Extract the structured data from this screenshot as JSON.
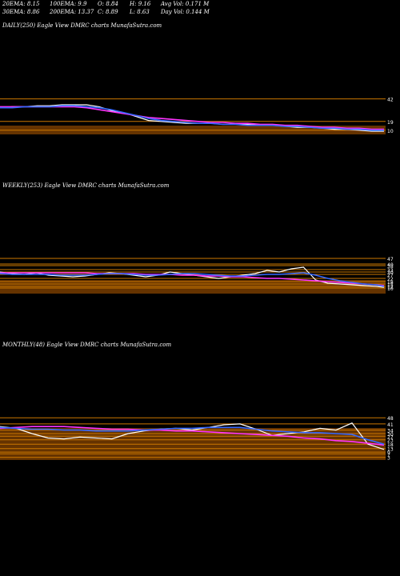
{
  "header": {
    "row1": [
      "20EMA: 8.15",
      "100EMA: 9.9",
      "O: 8.84",
      "H: 9.16",
      "Avg Vol: 0.171 M"
    ],
    "row2": [
      "30EMA: 8.86",
      "200EMA: 13.37",
      "C: 8.89",
      "L: 8.63",
      "Day Vol: 0.144 M"
    ]
  },
  "panels": {
    "daily": {
      "title": "DAILY(250) Eagle  View  DMRC charts MunafaSutra.com",
      "levels": [
        "42",
        "19",
        "10"
      ]
    },
    "weekly": {
      "title": "WEEKLY(253) Eagle  View  DMRC charts MunafaSutra.com",
      "levels": [
        "47",
        "40",
        "38",
        "33",
        "30",
        "27",
        "22",
        "18",
        "15",
        "12",
        "10"
      ]
    },
    "monthly": {
      "title": "MONTHLY(48) Eagle  View  DMRC charts MunafaSutra.com",
      "levels": [
        "48",
        "41",
        "34",
        "30",
        "27",
        "23",
        "18",
        "13",
        "9",
        "7",
        "3"
      ]
    }
  },
  "colors": {
    "background": "#000000",
    "price": "#ffffff",
    "ema_pink": "#ff33ff",
    "ema_red": "#ff2222",
    "ema_blue": "#3366ff",
    "ema_green": "#33aa33",
    "level": "#cc7700",
    "level_band": "#b85c00"
  },
  "chart_data": [
    {
      "type": "line",
      "x": [
        0,
        8,
        16,
        24,
        32,
        40,
        48,
        56,
        64,
        72,
        80,
        88,
        96,
        104,
        112,
        120,
        128,
        136,
        144,
        152,
        160,
        168,
        176,
        184,
        192,
        200,
        208,
        216,
        224,
        232,
        240,
        248
      ],
      "series": [
        {
          "key": "price",
          "color": "#ffffff",
          "values": [
            33,
            34,
            34,
            35,
            35,
            36,
            36,
            36,
            34,
            30,
            28,
            24,
            20,
            19,
            18,
            17,
            17,
            17,
            16,
            16,
            16,
            15,
            15,
            14,
            13,
            13,
            12,
            11,
            11,
            10,
            9,
            9
          ]
        },
        {
          "key": "ema_pink",
          "color": "#ff33ff",
          "values": [
            34,
            34,
            34,
            34,
            34,
            34,
            34,
            33,
            31,
            29,
            27,
            25,
            23,
            22,
            21,
            20,
            19,
            18,
            18,
            17,
            17,
            16,
            16,
            15,
            15,
            14,
            13,
            13,
            12,
            12,
            11,
            11
          ]
        },
        {
          "key": "ema_blue",
          "color": "#3366ff",
          "values": [
            33,
            33,
            34,
            34,
            34,
            35,
            35,
            34,
            33,
            31,
            28,
            25,
            22,
            20,
            19,
            18,
            17,
            17,
            16,
            16,
            15,
            15,
            15,
            14,
            14,
            13,
            12,
            12,
            11,
            11,
            10,
            10
          ]
        }
      ],
      "ylim": [
        0,
        45
      ],
      "levels": [
        42,
        19,
        10
      ]
    },
    {
      "type": "line",
      "x": [
        0,
        8,
        16,
        24,
        32,
        40,
        48,
        56,
        64,
        72,
        80,
        88,
        96,
        104,
        112,
        120,
        128,
        136,
        144,
        152,
        160,
        168,
        176,
        184,
        192,
        200,
        208,
        216,
        224,
        232,
        240,
        248,
        253
      ],
      "series": [
        {
          "key": "price",
          "color": "#ffffff",
          "values": [
            30,
            28,
            27,
            29,
            26,
            25,
            24,
            25,
            27,
            29,
            28,
            26,
            24,
            26,
            30,
            28,
            26,
            24,
            22,
            24,
            26,
            28,
            32,
            30,
            34,
            36,
            20,
            16,
            15,
            14,
            13,
            12,
            11
          ]
        },
        {
          "key": "ema_pink",
          "color": "#ff33ff",
          "values": [
            29,
            29,
            29,
            29,
            29,
            29,
            29,
            29,
            28,
            28,
            28,
            28,
            27,
            27,
            27,
            26,
            26,
            25,
            25,
            24,
            24,
            23,
            22,
            22,
            21,
            20,
            19,
            18,
            17,
            16,
            15,
            14,
            13
          ]
        },
        {
          "key": "ema_blue",
          "color": "#3366ff",
          "values": [
            28,
            27,
            27,
            27,
            27,
            26,
            26,
            26,
            27,
            28,
            28,
            27,
            26,
            26,
            27,
            28,
            28,
            27,
            26,
            25,
            25,
            26,
            27,
            27,
            28,
            29,
            26,
            22,
            19,
            17,
            15,
            14,
            12
          ]
        }
      ],
      "ylim": [
        0,
        50
      ],
      "levels": [
        47,
        40,
        38,
        33,
        30,
        27,
        22,
        18,
        15,
        12,
        10
      ]
    },
    {
      "type": "line",
      "x": [
        0,
        2,
        4,
        6,
        8,
        10,
        12,
        14,
        16,
        18,
        20,
        22,
        24,
        26,
        28,
        30,
        32,
        34,
        36,
        38,
        40,
        42,
        44,
        46,
        48
      ],
      "series": [
        {
          "key": "price",
          "color": "#ffffff",
          "values": [
            38,
            36,
            30,
            25,
            24,
            26,
            25,
            24,
            30,
            33,
            35,
            36,
            34,
            37,
            40,
            41,
            35,
            28,
            30,
            32,
            36,
            34,
            42,
            18,
            12
          ]
        },
        {
          "key": "ema_pink",
          "color": "#ff33ff",
          "values": [
            36,
            37,
            38,
            38,
            38,
            37,
            36,
            35,
            35,
            34,
            34,
            33,
            33,
            32,
            31,
            30,
            29,
            28,
            27,
            25,
            24,
            22,
            21,
            19,
            17
          ]
        },
        {
          "key": "ema_blue",
          "color": "#3366ff",
          "values": [
            37,
            36,
            35,
            35,
            34,
            34,
            33,
            33,
            33,
            34,
            35,
            36,
            36,
            37,
            37,
            37,
            35,
            33,
            32,
            31,
            31,
            30,
            29,
            23,
            18
          ]
        }
      ],
      "ylim": [
        0,
        50
      ],
      "levels": [
        48,
        41,
        34,
        30,
        27,
        23,
        18,
        13,
        9,
        7,
        3
      ]
    }
  ]
}
